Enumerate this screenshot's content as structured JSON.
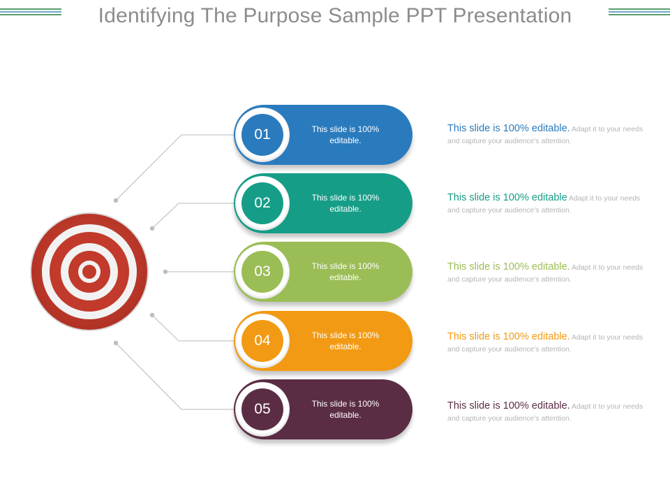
{
  "title": "Identifying The Purpose Sample PPT Presentation",
  "colors": {
    "title": "#8c8c8c",
    "deco_line": "#5a9e6c",
    "target_red": "#c23a2b",
    "target_white": "#f2f2f2",
    "connector": "#c8c8c8"
  },
  "items": [
    {
      "number": "01",
      "pill_text": "This slide is 100% editable.",
      "desc_lead": "This slide is 100% editable.",
      "desc_rest": " Adapt it to your needs and capture your audience's attention.",
      "color": "#2a7bbd"
    },
    {
      "number": "02",
      "pill_text": "This slide is 100% editable.",
      "desc_lead": "This slide is 100% editable",
      "desc_rest": " Adapt it to your needs and capture your audience's attention.",
      "color": "#169d88"
    },
    {
      "number": "03",
      "pill_text": "This slide is 100% editable.",
      "desc_lead": "This slide is 100% editable.",
      "desc_rest": " Adapt it to your needs and capture your audience's attention.",
      "color": "#9bbd56"
    },
    {
      "number": "04",
      "pill_text": "This slide is 100% editable.",
      "desc_lead": "This slide is 100% editable.",
      "desc_rest": " Adapt it to your needs and capture your audience's attention.",
      "color": "#f29a13"
    },
    {
      "number": "05",
      "pill_text": "This slide is 100% editable.",
      "desc_lead": "This slide is 100% editable.",
      "desc_rest": " Adapt it to your needs and capture your audience's attention.",
      "color": "#5b2d45"
    }
  ]
}
